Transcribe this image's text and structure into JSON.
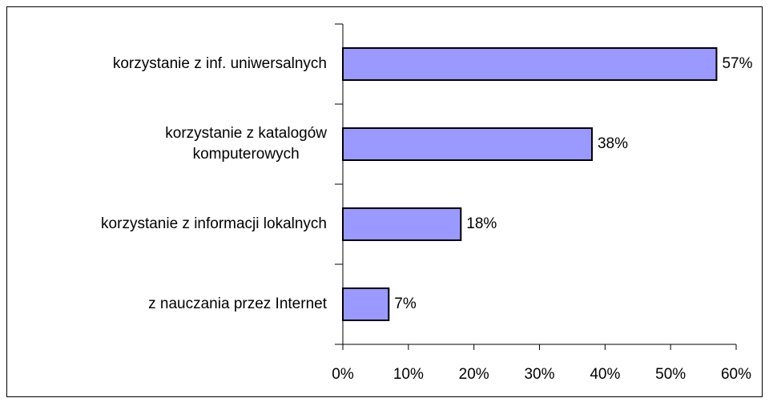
{
  "chart_data": {
    "type": "hbar",
    "categories": [
      "korzystanie z inf. uniwersalnych",
      "korzystanie z katalogów\nkomputerowych",
      "korzystanie z informacji lokalnych",
      "z nauczania przez Internet"
    ],
    "values": [
      57,
      38,
      18,
      7
    ],
    "value_labels": [
      "57%",
      "38%",
      "18%",
      "7%"
    ],
    "color": "#9999ff",
    "xlim": [
      0,
      60
    ],
    "xticks": [
      {
        "value": 0,
        "label": "0%"
      },
      {
        "value": 10,
        "label": "10%"
      },
      {
        "value": 20,
        "label": "20%"
      },
      {
        "value": 30,
        "label": "30%"
      },
      {
        "value": 40,
        "label": "40%"
      },
      {
        "value": 50,
        "label": "50%"
      },
      {
        "value": 60,
        "label": "60%"
      }
    ],
    "grid": false
  }
}
